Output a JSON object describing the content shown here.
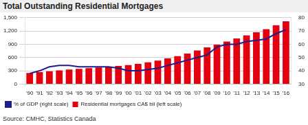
{
  "chart_data": {
    "type": "bar",
    "title": "Total Outstanding Residential Mortgages",
    "source": "Source: CMHC, Statistics Canada",
    "categories": [
      "'90",
      "'91",
      "'92",
      "'93",
      "'94",
      "'95",
      "'96",
      "'97",
      "'98",
      "'99",
      "'00",
      "'01",
      "'02",
      "'03",
      "'04",
      "'05",
      "'06",
      "'07",
      "'08",
      "'09",
      "'10",
      "'11",
      "'12",
      "'13",
      "'14",
      "'15",
      "'16"
    ],
    "series": [
      {
        "name": "Residential mortgages CA$ bil (left scale)",
        "type": "bar",
        "color": "#e3000f",
        "values": [
          250,
          270,
          290,
          310,
          330,
          345,
          360,
          375,
          390,
          410,
          430,
          455,
          490,
          530,
          580,
          630,
          690,
          760,
          830,
          890,
          960,
          1030,
          1100,
          1170,
          1240,
          1330,
          1420
        ]
      },
      {
        "name": "% of GDP (right scale)",
        "type": "line",
        "color": "#1c1c8c",
        "axis": "y2",
        "values": [
          38,
          40,
          43,
          44,
          44,
          43,
          43,
          43,
          43,
          42,
          40,
          40,
          41,
          42,
          44,
          46,
          48,
          50,
          52,
          58,
          60,
          60,
          62,
          63,
          64,
          68,
          71
        ]
      }
    ],
    "ylim": [
      0,
      1500
    ],
    "yticks": [
      0,
      300,
      600,
      900,
      {
        "value": 1200,
        "label": "1,200"
      },
      {
        "value": 1500,
        "label": "1,500"
      }
    ],
    "y2lim": [
      30,
      80
    ],
    "y2ticks": [
      30,
      40,
      50,
      60,
      70,
      80
    ],
    "grid": true,
    "legend": "bottom"
  }
}
